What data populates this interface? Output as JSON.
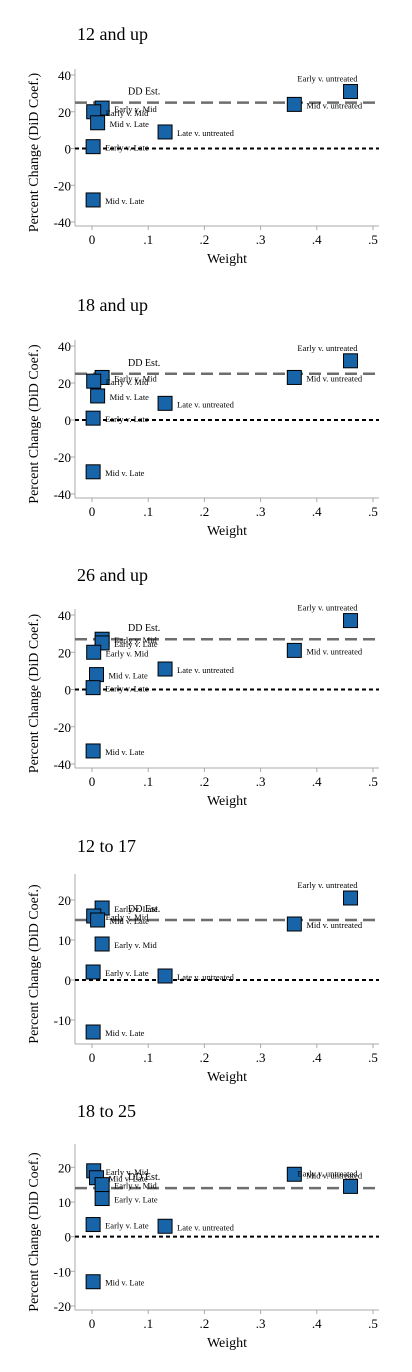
{
  "chart_data": [
    {
      "type": "scatter",
      "title": "12 and up",
      "xlabel": "Weight",
      "ylabel": "Percent Change (DiD Coef.)",
      "xlim": [
        0,
        0.5
      ],
      "ylim": [
        -40,
        40
      ],
      "xticks": [
        0,
        0.1,
        0.2,
        0.3,
        0.4,
        0.5
      ],
      "xtick_labels": [
        "0",
        ".1",
        ".2",
        ".3",
        ".4",
        ".5"
      ],
      "yticks": [
        -40,
        -20,
        0,
        20,
        40
      ],
      "ytick_labels": [
        "-40",
        "-20",
        "0",
        "20",
        "40"
      ],
      "dd_estimate": 25,
      "dd_label": "DD Est.",
      "points": [
        {
          "x": 0.46,
          "y": 31,
          "label": "Early v. untreated"
        },
        {
          "x": 0.36,
          "y": 24,
          "label": "Mid v. untreated"
        },
        {
          "x": 0.13,
          "y": 9,
          "label": "Late v. untreated"
        },
        {
          "x": 0.018,
          "y": 22,
          "label": "Early v. Mid"
        },
        {
          "x": 0.003,
          "y": 20,
          "label": "Early v. Mid"
        },
        {
          "x": 0.01,
          "y": 14,
          "label": "Mid v. Late"
        },
        {
          "x": 0.002,
          "y": 1,
          "label": "Early v. Late"
        },
        {
          "x": 0.002,
          "y": -28,
          "label": "Mid v. Late"
        }
      ]
    },
    {
      "type": "scatter",
      "title": "18 and up",
      "xlabel": "Weight",
      "ylabel": "Percent Change (DiD Coef.)",
      "xlim": [
        0,
        0.5
      ],
      "ylim": [
        -40,
        40
      ],
      "xticks": [
        0,
        0.1,
        0.2,
        0.3,
        0.4,
        0.5
      ],
      "xtick_labels": [
        "0",
        ".1",
        ".2",
        ".3",
        ".4",
        ".5"
      ],
      "yticks": [
        -40,
        -20,
        0,
        20,
        40
      ],
      "ytick_labels": [
        "-40",
        "-20",
        "0",
        "20",
        "40"
      ],
      "dd_estimate": 25,
      "dd_label": "DD Est.",
      "points": [
        {
          "x": 0.46,
          "y": 32,
          "label": "Early v. untreated"
        },
        {
          "x": 0.36,
          "y": 23,
          "label": "Mid v. untreated"
        },
        {
          "x": 0.13,
          "y": 9,
          "label": "Late v. untreated"
        },
        {
          "x": 0.018,
          "y": 23,
          "label": "Early v. Mid"
        },
        {
          "x": 0.003,
          "y": 21,
          "label": "Early v. Mid"
        },
        {
          "x": 0.01,
          "y": 13,
          "label": "Mid v. Late"
        },
        {
          "x": 0.002,
          "y": 1,
          "label": "Early v. Late"
        },
        {
          "x": 0.002,
          "y": -28,
          "label": "Mid v. Late"
        }
      ]
    },
    {
      "type": "scatter",
      "title": "26 and up",
      "xlabel": "Weight",
      "ylabel": "Percent Change (DiD Coef.)",
      "xlim": [
        0,
        0.5
      ],
      "ylim": [
        -40,
        40
      ],
      "xticks": [
        0,
        0.1,
        0.2,
        0.3,
        0.4,
        0.5
      ],
      "xtick_labels": [
        "0",
        ".1",
        ".2",
        ".3",
        ".4",
        ".5"
      ],
      "yticks": [
        -40,
        -20,
        0,
        20,
        40
      ],
      "ytick_labels": [
        "-40",
        "-20",
        "0",
        "20",
        "40"
      ],
      "dd_estimate": 27,
      "dd_label": "DD Est.",
      "points": [
        {
          "x": 0.46,
          "y": 37,
          "label": "Early v. untreated"
        },
        {
          "x": 0.36,
          "y": 21,
          "label": "Mid v. untreated"
        },
        {
          "x": 0.13,
          "y": 11,
          "label": "Late v. untreated"
        },
        {
          "x": 0.018,
          "y": 27,
          "label": "Early v. Mid"
        },
        {
          "x": 0.018,
          "y": 25,
          "label": "Early v. Late"
        },
        {
          "x": 0.003,
          "y": 20,
          "label": "Early v. Mid"
        },
        {
          "x": 0.008,
          "y": 8,
          "label": "Mid v. Late"
        },
        {
          "x": 0.002,
          "y": 1,
          "label": "Early v. Late"
        },
        {
          "x": 0.002,
          "y": -33,
          "label": "Mid v. Late"
        }
      ]
    },
    {
      "type": "scatter",
      "title": "12 to 17",
      "xlabel": "Weight",
      "ylabel": "Percent Change (DiD Coef.)",
      "xlim": [
        0,
        0.5
      ],
      "ylim": [
        -15,
        25
      ],
      "xticks": [
        0,
        0.1,
        0.2,
        0.3,
        0.4,
        0.5
      ],
      "xtick_labels": [
        "0",
        ".1",
        ".2",
        ".3",
        ".4",
        ".5"
      ],
      "yticks": [
        -10,
        0,
        10,
        20
      ],
      "ytick_labels": [
        "-10",
        "0",
        "10",
        "20"
      ],
      "dd_estimate": 15,
      "dd_label": "DD Est.",
      "points": [
        {
          "x": 0.46,
          "y": 20.5,
          "label": "Early v. untreated"
        },
        {
          "x": 0.36,
          "y": 14,
          "label": "Mid v. untreated"
        },
        {
          "x": 0.13,
          "y": 1,
          "label": "Late v. untreated"
        },
        {
          "x": 0.018,
          "y": 18,
          "label": "Early v. Late"
        },
        {
          "x": 0.003,
          "y": 16,
          "label": "Early v. Mid"
        },
        {
          "x": 0.01,
          "y": 15,
          "label": "Mid v. Late"
        },
        {
          "x": 0.018,
          "y": 9,
          "label": "Early v. Mid"
        },
        {
          "x": 0.002,
          "y": 2,
          "label": "Early v. Late"
        },
        {
          "x": 0.002,
          "y": -13,
          "label": "Mid v. Late"
        }
      ]
    },
    {
      "type": "scatter",
      "title": "18 to 25",
      "xlabel": "Weight",
      "ylabel": "Percent Change (DiD Coef.)",
      "xlim": [
        0,
        0.5
      ],
      "ylim": [
        -20,
        25
      ],
      "xticks": [
        0,
        0.1,
        0.2,
        0.3,
        0.4,
        0.5
      ],
      "xtick_labels": [
        "0",
        ".1",
        ".2",
        ".3",
        ".4",
        ".5"
      ],
      "yticks": [
        -20,
        -10,
        0,
        10,
        20
      ],
      "ytick_labels": [
        "-20",
        "-10",
        "0",
        "10",
        "20"
      ],
      "dd_estimate": 14,
      "dd_label": "DD Est.",
      "points": [
        {
          "x": 0.36,
          "y": 18,
          "label": "Mid v. untreated"
        },
        {
          "x": 0.46,
          "y": 14.5,
          "label": "Early v. untreated"
        },
        {
          "x": 0.13,
          "y": 3,
          "label": "Late v. untreated"
        },
        {
          "x": 0.003,
          "y": 19,
          "label": "Early v. Mid"
        },
        {
          "x": 0.008,
          "y": 17,
          "label": "Mid v. Late"
        },
        {
          "x": 0.018,
          "y": 15,
          "label": "Early v. Mid"
        },
        {
          "x": 0.018,
          "y": 11,
          "label": "Early v. Late"
        },
        {
          "x": 0.002,
          "y": 3.5,
          "label": "Early v. Late"
        },
        {
          "x": 0.002,
          "y": -13,
          "label": "Mid v. Late"
        }
      ]
    }
  ],
  "colors": {
    "marker_fill": "#1764a8",
    "marker_stroke": "#000000",
    "dd_line": "#6e6e6e",
    "zero_line": "#000000",
    "axis": "#aaaaaa"
  }
}
